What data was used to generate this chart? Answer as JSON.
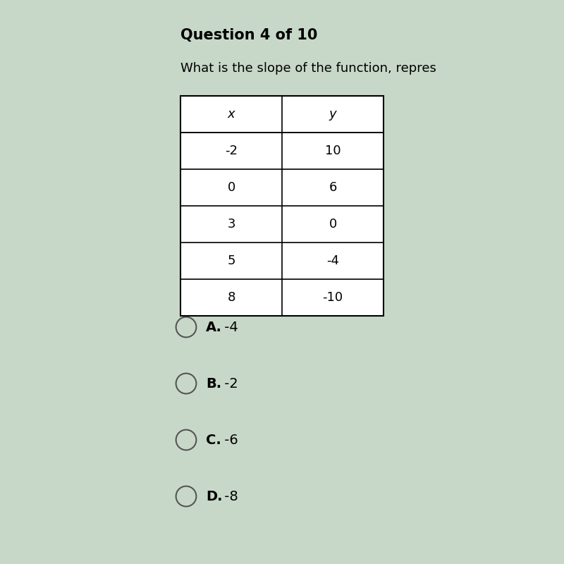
{
  "title": "Question 4 of 10",
  "question": "What is the slope of the function, repres",
  "table_headers": [
    "x",
    "y"
  ],
  "table_data": [
    [
      "-2",
      "10"
    ],
    [
      "0",
      "6"
    ],
    [
      "3",
      "0"
    ],
    [
      "5",
      "-4"
    ],
    [
      "8",
      "-10"
    ]
  ],
  "choices": [
    {
      "label": "A.",
      "value": "-4"
    },
    {
      "label": "B.",
      "value": "-2"
    },
    {
      "label": "C.",
      "value": "-6"
    },
    {
      "label": "D.",
      "value": "-8"
    }
  ],
  "bg_color": "#c8d8c8",
  "table_bg": "#e8e8e8",
  "title_fontsize": 15,
  "question_fontsize": 13,
  "table_fontsize": 13,
  "choice_fontsize": 14
}
